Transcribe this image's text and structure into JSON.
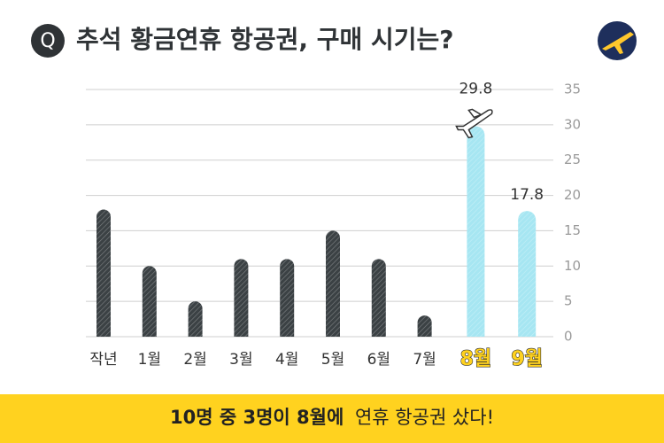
{
  "title_badge": "Q",
  "chart_data": {
    "type": "bar",
    "title": "추석 황금연휴 항공권, 구매 시기는?",
    "categories": [
      "작년",
      "1월",
      "2월",
      "3월",
      "4월",
      "5월",
      "6월",
      "7월",
      "8월",
      "9월"
    ],
    "values": [
      18,
      10,
      5,
      11,
      11,
      15,
      11,
      3,
      29.8,
      17.8
    ],
    "value_labels": [
      null,
      null,
      null,
      null,
      null,
      null,
      null,
      null,
      "29.8",
      "17.8"
    ],
    "colors": [
      "#3b4144",
      "#3b4144",
      "#3b4144",
      "#3b4144",
      "#3b4144",
      "#3b4144",
      "#3b4144",
      "#3b4144",
      "#a6e6f2",
      "#a6e6f2"
    ],
    "highlight": [
      false,
      false,
      false,
      false,
      false,
      false,
      false,
      false,
      true,
      true
    ],
    "ylim": [
      0,
      35
    ],
    "yticks": [
      0,
      5,
      10,
      15,
      20,
      25,
      30,
      35
    ],
    "grid": true,
    "y_axis_side": "right"
  },
  "footer": {
    "bold": "10명 중 3명이 8월에",
    "regular": "연휴 항공권 샀다!"
  }
}
